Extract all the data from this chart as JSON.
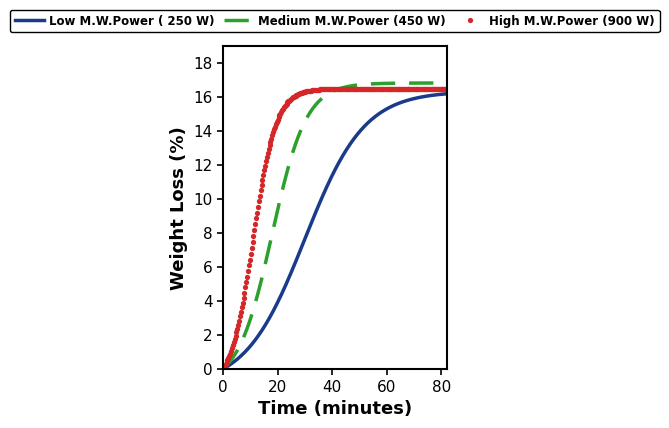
{
  "title": "",
  "xlabel": "Time (minutes)",
  "ylabel": "Weight Loss (%)",
  "xlim": [
    0,
    82
  ],
  "ylim": [
    0,
    19
  ],
  "xticks": [
    0,
    20,
    40,
    60,
    80
  ],
  "yticks": [
    0,
    2,
    4,
    6,
    8,
    10,
    12,
    14,
    16,
    18
  ],
  "series": [
    {
      "label": "Low M.W.Power ( 250 W)",
      "color": "#1a3a8a",
      "linestyle": "solid",
      "linewidth": 2.5,
      "L": 17.35,
      "k": 0.092,
      "x0": 30
    },
    {
      "label": "Medium M.W.Power (450 W)",
      "color": "#2ca02c",
      "linestyle": "dashed",
      "linewidth": 2.5,
      "L": 17.75,
      "k": 0.16,
      "x0": 18
    },
    {
      "label": "High M.W.Power (900 W)",
      "color": "#d62728",
      "linestyle": "dotted",
      "linewidth": 2.8,
      "L": 17.65,
      "k": 0.24,
      "x0": 11
    }
  ],
  "legend_fontsize": 8.5,
  "axis_fontsize": 13,
  "tick_fontsize": 11,
  "background_color": "#ffffff",
  "figure_bg": "#ffffff",
  "legend_border_color": "#000000"
}
